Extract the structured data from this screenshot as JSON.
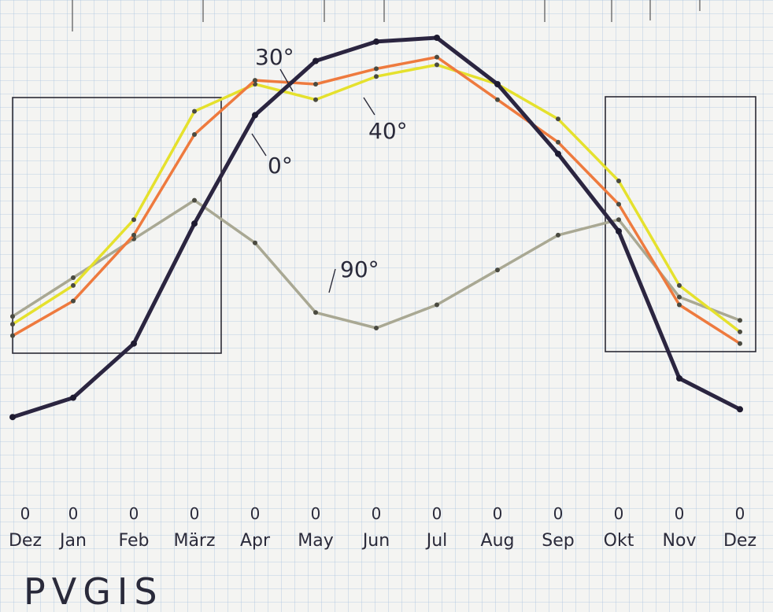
{
  "chart_data": {
    "type": "line",
    "title": "",
    "xlabel": "",
    "ylabel": "",
    "grid": true,
    "categories": [
      "Dez",
      "Jan",
      "Feb",
      "März",
      "Apr",
      "May",
      "Jun",
      "Jul",
      "Aug",
      "Sep",
      "Okt",
      "Nov",
      "Dez"
    ],
    "zero_labels": [
      "0",
      "0",
      "0",
      "0",
      "0",
      "0",
      "0",
      "0",
      "0",
      "0",
      "0",
      "0",
      "0"
    ],
    "ylim": [
      0,
      100
    ],
    "series": [
      {
        "name": "0°",
        "color": "#2b2540",
        "values": [
          2,
          7,
          21,
          52,
          80,
          94,
          99,
          100,
          88,
          70,
          50,
          12,
          4
        ]
      },
      {
        "name": "30°",
        "color": "#ee7a3e",
        "values": [
          23,
          32,
          49,
          75,
          89,
          88,
          92,
          95,
          84,
          73,
          57,
          31,
          21
        ]
      },
      {
        "name": "40°",
        "color": "#e5e12d",
        "values": [
          26,
          36,
          53,
          81,
          88,
          84,
          90,
          93,
          88,
          79,
          63,
          36,
          24
        ]
      },
      {
        "name": "90°",
        "color": "#a9a893",
        "values": [
          28,
          38,
          48,
          58,
          47,
          29,
          25,
          31,
          40,
          49,
          53,
          33,
          27
        ]
      }
    ],
    "annotations": [
      "30°",
      "40°",
      "0°",
      "90°"
    ],
    "footer_text": "PVGIS"
  }
}
